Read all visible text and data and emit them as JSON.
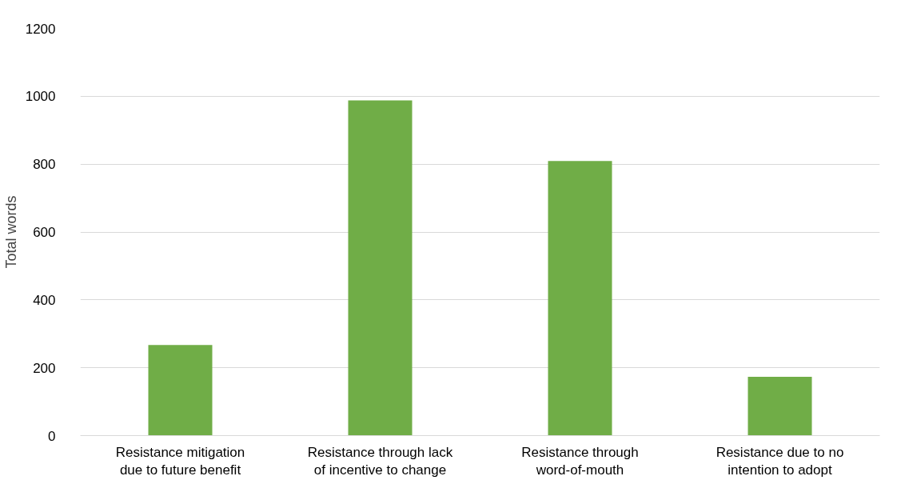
{
  "chart_data": {
    "type": "bar",
    "ylabel": "Total words",
    "categories": [
      "Resistance mitigation due to future benefit",
      "Resistance through lack of incentive to change",
      "Resistance through word-of-mouth",
      "Resistance due to no intention to adopt"
    ],
    "values": [
      267,
      988,
      809,
      173
    ],
    "color": "#70ad47",
    "ylim": [
      0,
      1200
    ],
    "yticks": [
      0,
      200,
      400,
      600,
      800,
      1000,
      1200
    ],
    "grid": "y"
  }
}
